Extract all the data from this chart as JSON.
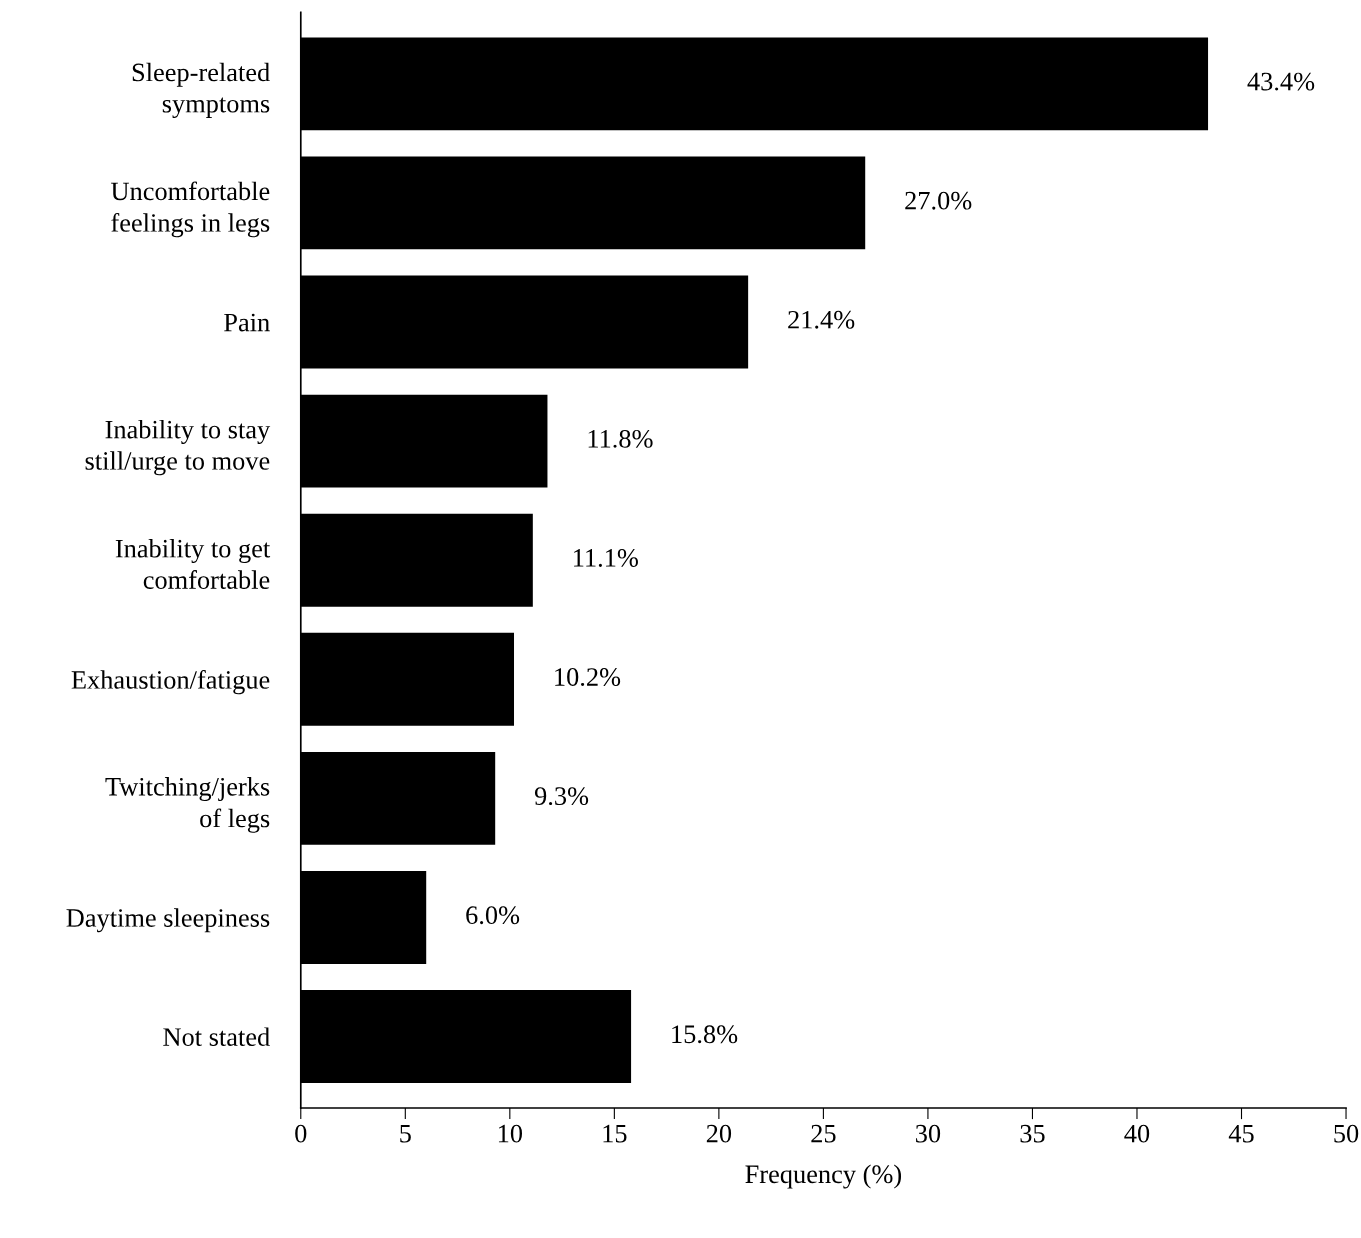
{
  "chart_data": {
    "type": "bar",
    "orientation": "horizontal",
    "xlabel": "Frequency (%)",
    "categories": [
      "Sleep-related\nsymptoms",
      "Uncomfortable\nfeelings in legs",
      "Pain",
      "Inability to stay\nstill/urge to move",
      "Inability to get\ncomfortable",
      "Exhaustion/fatigue",
      "Twitching/jerks\nof legs",
      "Daytime sleepiness",
      "Not stated"
    ],
    "values": [
      43.4,
      27.0,
      21.4,
      11.8,
      11.1,
      10.2,
      9.3,
      6.0,
      15.8
    ],
    "value_labels": [
      "43.4%",
      "27.0%",
      "21.4%",
      "11.8%",
      "11.1%",
      "10.2%",
      "9.3%",
      "6.0%",
      "15.8%"
    ],
    "color": "#000000",
    "xlim": [
      0,
      50
    ],
    "xticks": [
      0,
      5,
      10,
      15,
      20,
      25,
      30,
      35,
      40,
      45,
      50
    ],
    "grid": false,
    "legend": false
  }
}
